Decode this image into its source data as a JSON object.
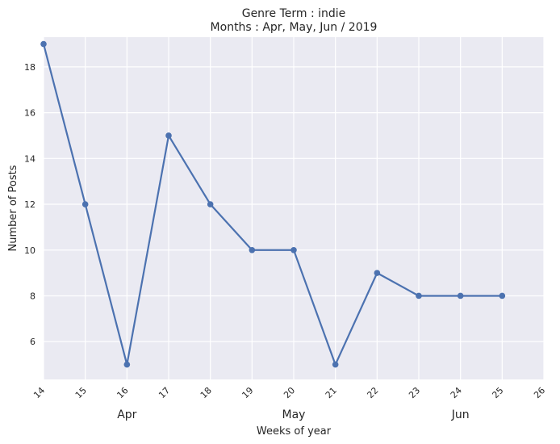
{
  "chart_data": {
    "type": "line",
    "title": "Genre Term : indie",
    "subtitle": "Months : Apr, May, Jun / 2019",
    "xlabel": "Weeks of year",
    "ylabel": "Number of Posts",
    "x_ticks": [
      "14",
      "15",
      "16",
      "17",
      "18",
      "19",
      "20",
      "21",
      "22",
      "23",
      "24",
      "25",
      "26"
    ],
    "y_ticks": [
      "6",
      "8",
      "10",
      "12",
      "14",
      "16",
      "18"
    ],
    "xlim": [
      14,
      26
    ],
    "ylim": [
      4.35,
      19.3
    ],
    "month_labels": [
      {
        "label": "Apr",
        "week": 16
      },
      {
        "label": "May",
        "week": 20
      },
      {
        "label": "Jun",
        "week": 24
      }
    ],
    "series": [
      {
        "x": [
          14,
          15,
          16,
          17,
          18,
          19,
          20,
          21,
          22,
          23,
          24,
          25
        ],
        "y": [
          19,
          12,
          5,
          15,
          12,
          10,
          10,
          5,
          9,
          8,
          8,
          8
        ]
      }
    ],
    "grid": true,
    "colors": {
      "line": "#4c72b0",
      "background": "#eaeaf2",
      "grid": "#ffffff"
    }
  }
}
